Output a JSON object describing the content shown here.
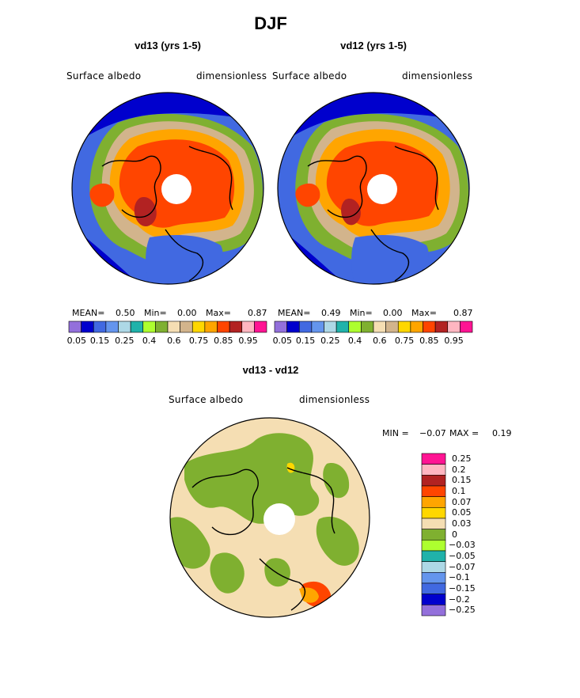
{
  "page_title": "DJF",
  "chart_data": [
    {
      "type": "heatmap",
      "projection": "polar-stereographic",
      "title": "vd13 (yrs 1-5)",
      "variable": "Surface albedo",
      "units": "dimensionless",
      "stats": {
        "mean_label": "MEAN=",
        "mean": "0.50",
        "min_label": "Min=",
        "min": "0.00",
        "max_label": "Max=",
        "max": "0.87"
      },
      "colorbar": {
        "orientation": "horizontal",
        "colors": [
          "#9370db",
          "#0000cd",
          "#4169e1",
          "#6495ed",
          "#add8e6",
          "#20b2aa",
          "#adff2f",
          "#7fb030",
          "#f5deb3",
          "#d2b48c",
          "#ffd700",
          "#ffa500",
          "#ff4500",
          "#b22222",
          "#ffb6c1",
          "#ff1493"
        ],
        "tick_labels": [
          "0.05",
          "0.15",
          "0.25",
          "0.4",
          "0.6",
          "0.75",
          "0.85",
          "0.95"
        ]
      }
    },
    {
      "type": "heatmap",
      "projection": "polar-stereographic",
      "title": "vd12 (yrs 1-5)",
      "variable": "Surface albedo",
      "units": "dimensionless",
      "stats": {
        "mean_label": "MEAN=",
        "mean": "0.49",
        "min_label": "Min=",
        "min": "0.00",
        "max_label": "Max=",
        "max": "0.87"
      },
      "colorbar": {
        "orientation": "horizontal",
        "colors": [
          "#9370db",
          "#0000cd",
          "#4169e1",
          "#6495ed",
          "#add8e6",
          "#20b2aa",
          "#adff2f",
          "#7fb030",
          "#f5deb3",
          "#d2b48c",
          "#ffd700",
          "#ffa500",
          "#ff4500",
          "#b22222",
          "#ffb6c1",
          "#ff1493"
        ],
        "tick_labels": [
          "0.05",
          "0.15",
          "0.25",
          "0.4",
          "0.6",
          "0.75",
          "0.85",
          "0.95"
        ]
      }
    },
    {
      "type": "heatmap",
      "projection": "polar-stereographic",
      "title": "vd13 - vd12",
      "variable": "Surface albedo",
      "units": "dimensionless",
      "stats": {
        "min_label": "MIN =",
        "min": "−0.07",
        "max_label": "MAX =",
        "max": "0.19"
      },
      "colorbar": {
        "orientation": "vertical",
        "colors": [
          "#ff1493",
          "#ffb6c1",
          "#b22222",
          "#ff4500",
          "#ffa500",
          "#ffd700",
          "#f5deb3",
          "#7fb030",
          "#adff2f",
          "#20b2aa",
          "#add8e6",
          "#6495ed",
          "#4169e1",
          "#0000cd",
          "#9370db"
        ],
        "tick_labels": [
          "0.25",
          "0.2",
          "0.15",
          "0.1",
          "0.07",
          "0.05",
          "0.03",
          "0",
          "−0.03",
          "−0.05",
          "−0.07",
          "−0.1",
          "−0.15",
          "−0.2",
          "−0.25"
        ]
      }
    }
  ]
}
